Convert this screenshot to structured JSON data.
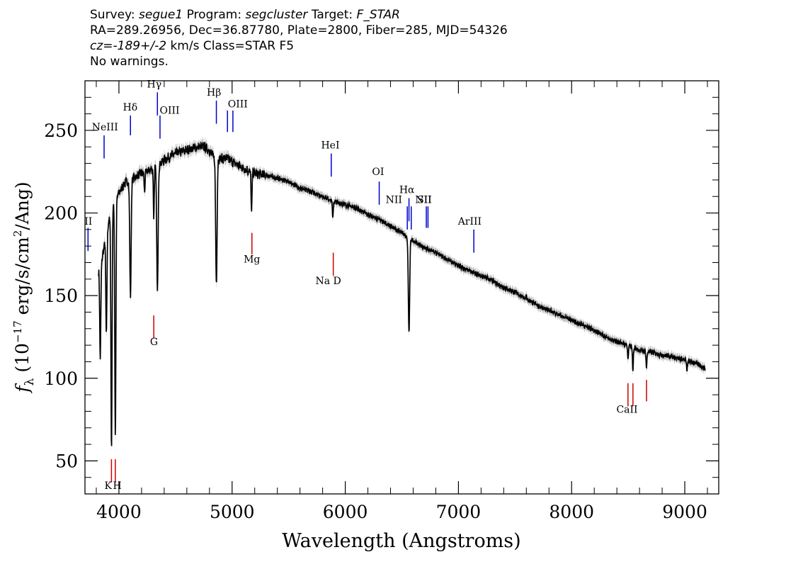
{
  "header": {
    "line1": {
      "survey_label": "Survey:",
      "survey": "segue1",
      "program_label": "Program:",
      "program": "segcluster",
      "target_label": "Target:",
      "target": "F_STAR"
    },
    "line2": "RA=289.26956, Dec=36.87780, Plate=2800, Fiber=285, MJD=54326",
    "line3": {
      "cz_label": "cz=",
      "cz_value": "-189+/-2",
      "rest": "km/s Class=STAR F5"
    },
    "line4": "No warnings."
  },
  "chart_data": {
    "type": "line",
    "xlabel": "Wavelength (Angstroms)",
    "ylabel": "f_λ (10^-17 erg/s/cm^2/Ang)",
    "xlim": [
      3700,
      9300
    ],
    "ylim": [
      30,
      280
    ],
    "xticks": [
      4000,
      5000,
      6000,
      7000,
      8000,
      9000
    ],
    "yticks": [
      50,
      100,
      150,
      200,
      250
    ],
    "colors": {
      "spectrum": "#000000",
      "error": "#bdbdbd",
      "emission": "#0000cc",
      "absorption": "#cc0000"
    },
    "series": [
      {
        "continuum": [
          [
            3820,
            165
          ],
          [
            3850,
            172
          ],
          [
            3900,
            192
          ],
          [
            3950,
            205
          ],
          [
            4000,
            212
          ],
          [
            4050,
            218
          ],
          [
            4100,
            220
          ],
          [
            4150,
            222
          ],
          [
            4200,
            224
          ],
          [
            4250,
            225
          ],
          [
            4300,
            227
          ],
          [
            4350,
            229
          ],
          [
            4400,
            232
          ],
          [
            4500,
            236
          ],
          [
            4600,
            238
          ],
          [
            4700,
            240
          ],
          [
            4750,
            240
          ],
          [
            4800,
            238
          ],
          [
            4850,
            232
          ],
          [
            4900,
            233
          ],
          [
            4950,
            233
          ],
          [
            5000,
            231
          ],
          [
            5100,
            227
          ],
          [
            5200,
            224
          ],
          [
            5300,
            223
          ],
          [
            5400,
            221
          ],
          [
            5500,
            219
          ],
          [
            5600,
            215
          ],
          [
            5700,
            213
          ],
          [
            5800,
            210
          ],
          [
            5900,
            207
          ],
          [
            6000,
            205
          ],
          [
            6100,
            203
          ],
          [
            6200,
            199
          ],
          [
            6300,
            196
          ],
          [
            6400,
            192
          ],
          [
            6500,
            188
          ],
          [
            6600,
            183
          ],
          [
            6700,
            179
          ],
          [
            6800,
            176
          ],
          [
            6900,
            172
          ],
          [
            7000,
            168
          ],
          [
            7100,
            165
          ],
          [
            7200,
            162
          ],
          [
            7300,
            159
          ],
          [
            7400,
            155
          ],
          [
            7500,
            152
          ],
          [
            7600,
            148
          ],
          [
            7700,
            144
          ],
          [
            7800,
            141
          ],
          [
            7900,
            138
          ],
          [
            8000,
            135
          ],
          [
            8100,
            132
          ],
          [
            8200,
            129
          ],
          [
            8300,
            125
          ],
          [
            8400,
            122
          ],
          [
            8500,
            120
          ],
          [
            8600,
            117
          ],
          [
            8700,
            116
          ],
          [
            8800,
            114
          ],
          [
            8900,
            113
          ],
          [
            9000,
            111
          ],
          [
            9100,
            109
          ],
          [
            9180,
            106
          ]
        ],
        "absorption_lines": [
          [
            3835,
            113
          ],
          [
            3889,
            126
          ],
          [
            3934,
            57
          ],
          [
            3968,
            66
          ],
          [
            4102,
            150
          ],
          [
            4227,
            213
          ],
          [
            4308,
            198
          ],
          [
            4340,
            152
          ],
          [
            4861,
            157
          ],
          [
            5172,
            200
          ],
          [
            5890,
            197
          ],
          [
            6563,
            128
          ],
          [
            7600,
            150
          ],
          [
            8498,
            111
          ],
          [
            8542,
            105
          ],
          [
            8662,
            106
          ],
          [
            9020,
            104
          ]
        ]
      }
    ],
    "line_markers": {
      "emission": [
        {
          "label": "NeIII",
          "x": 3869,
          "y1": 233,
          "y2": 247
        },
        {
          "label": "Hδ",
          "x": 4102,
          "y1": 247,
          "y2": 259
        },
        {
          "label": "Hγ",
          "x": 4340,
          "y1": 259,
          "y2": 273
        },
        {
          "label": "OIII",
          "x": 4363,
          "y1": 245,
          "y2": 259
        },
        {
          "label": "Hβ",
          "x": 4861,
          "y1": 254,
          "y2": 268
        },
        {
          "label": "OIII",
          "x": 4959,
          "y1": 249,
          "y2": 262
        },
        {
          "label": "OIII",
          "x": 5007,
          "y1": 249,
          "y2": 262
        },
        {
          "label": "HeI",
          "x": 5876,
          "y1": 222,
          "y2": 236
        },
        {
          "label": "OI",
          "x": 6300,
          "y1": 205,
          "y2": 219
        },
        {
          "label": "NII",
          "x": 6548,
          "y1": 190,
          "y2": 204
        },
        {
          "label": "Hα",
          "x": 6563,
          "y1": 195,
          "y2": 209
        },
        {
          "label": "NII",
          "x": 6583,
          "y1": 190,
          "y2": 204
        },
        {
          "label": "SII",
          "x": 6716,
          "y1": 191,
          "y2": 204
        },
        {
          "label": "SII",
          "x": 6731,
          "y1": 191,
          "y2": 204
        },
        {
          "label": "ArIII",
          "x": 7136,
          "y1": 176,
          "y2": 190
        },
        {
          "label": "OII",
          "x": 3727,
          "y1": 177,
          "y2": 191
        }
      ],
      "absorption": [
        {
          "label": "K",
          "x": 3934,
          "y1": 37,
          "y2": 51
        },
        {
          "label": "H",
          "x": 3968,
          "y1": 37,
          "y2": 51
        },
        {
          "label": "G",
          "x": 4308,
          "y1": 124,
          "y2": 138
        },
        {
          "label": "Mg",
          "x": 5175,
          "y1": 175,
          "y2": 188
        },
        {
          "label": "Na D",
          "x": 5894,
          "y1": 162,
          "y2": 176
        },
        {
          "label": "CaII",
          "x": 8498,
          "y1": 83,
          "y2": 97
        },
        {
          "label": "CaII",
          "x": 8542,
          "y1": 83,
          "y2": 97
        },
        {
          "label": "CaII",
          "x": 8662,
          "y1": 86,
          "y2": 99
        }
      ]
    },
    "marker_labels": [
      {
        "text": "NeIII",
        "x": 3877,
        "y": 250
      },
      {
        "text": "Hδ",
        "x": 4100,
        "y": 262
      },
      {
        "text": "Hγ",
        "x": 4312,
        "y": 276
      },
      {
        "text": "OIII",
        "x": 4448,
        "y": 260
      },
      {
        "text": "Hβ",
        "x": 4840,
        "y": 271
      },
      {
        "text": "OIII",
        "x": 5050,
        "y": 264
      },
      {
        "text": "HeI",
        "x": 5868,
        "y": 239
      },
      {
        "text": "OI",
        "x": 6290,
        "y": 223
      },
      {
        "text": "NII",
        "x": 6430,
        "y": 206
      },
      {
        "text": "Hα",
        "x": 6545,
        "y": 212
      },
      {
        "text": "NII",
        "x": 6690,
        "y": 206
      },
      {
        "text": "SII",
        "x": 6700,
        "y": 206
      },
      {
        "text": "ArIII",
        "x": 7100,
        "y": 193
      },
      {
        "text": "II",
        "x": 3730,
        "y": 193
      },
      {
        "text": "K",
        "x": 3905,
        "y": 33
      },
      {
        "text": "H",
        "x": 3985,
        "y": 33
      },
      {
        "text": "G",
        "x": 4310,
        "y": 120
      },
      {
        "text": "Mg",
        "x": 5175,
        "y": 170
      },
      {
        "text": "Na D",
        "x": 5850,
        "y": 157
      },
      {
        "text": "CaII",
        "x": 8490,
        "y": 79
      }
    ]
  }
}
